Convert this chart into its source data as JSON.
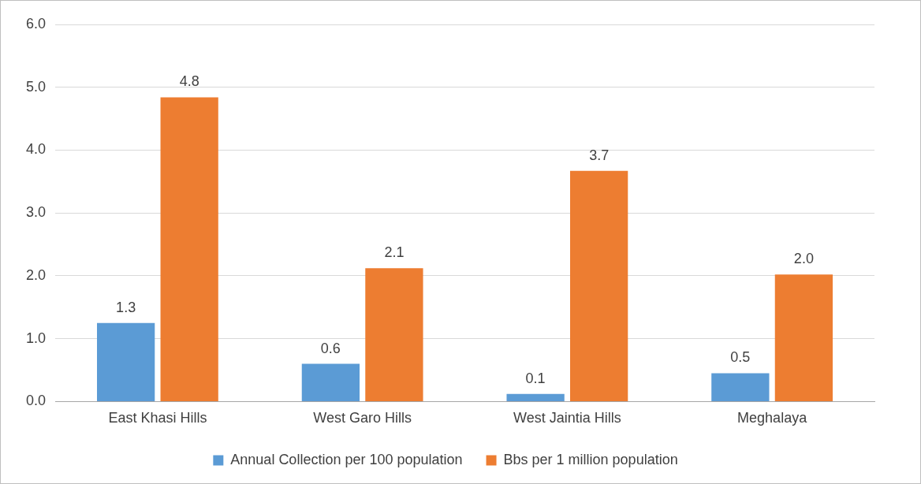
{
  "chart_data": {
    "type": "bar",
    "categories": [
      "East Khasi Hills",
      "West Garo Hills",
      "West Jaintia Hills",
      "Meghalaya"
    ],
    "series": [
      {
        "name": "Annual Collection per 100 population",
        "color": "#5b9bd5",
        "values": [
          1.25,
          0.6,
          0.12,
          0.45
        ],
        "value_labels": [
          "1.3",
          "0.6",
          "0.1",
          "0.5"
        ]
      },
      {
        "name": "Bbs per 1 million population",
        "color": "#ed7d31",
        "values": [
          4.84,
          2.12,
          3.67,
          2.02
        ],
        "value_labels": [
          "4.8",
          "2.1",
          "3.7",
          "2.0"
        ]
      }
    ],
    "ylim": [
      0,
      6
    ],
    "yticks": [
      {
        "value": 0,
        "label": "0.0"
      },
      {
        "value": 1,
        "label": "1.0"
      },
      {
        "value": 2,
        "label": "2.0"
      },
      {
        "value": 3,
        "label": "3.0"
      },
      {
        "value": 4,
        "label": "4.0"
      },
      {
        "value": 5,
        "label": "5.0"
      },
      {
        "value": 6,
        "label": "6.0"
      }
    ],
    "grid": "y",
    "legend": "bottom"
  }
}
